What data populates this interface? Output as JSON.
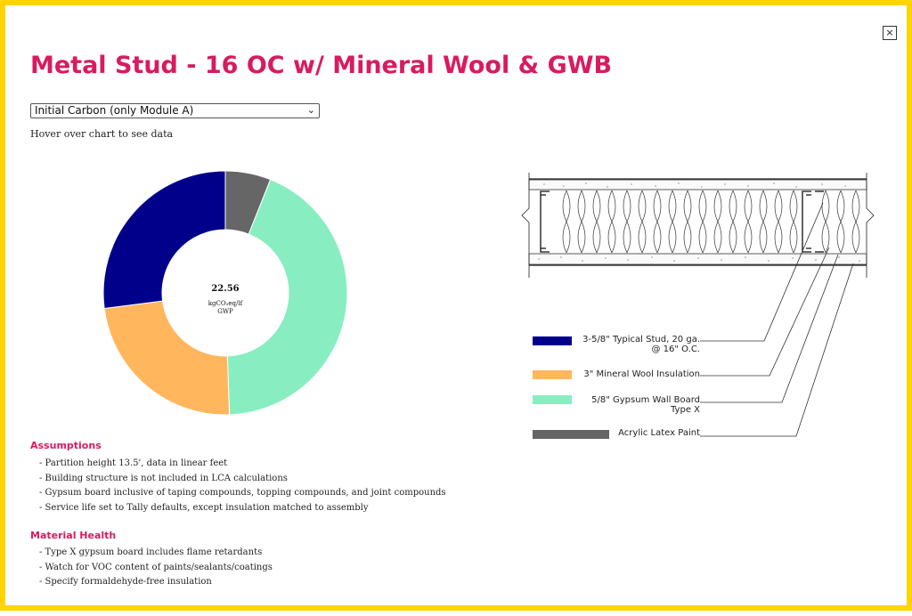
{
  "dialog": {
    "close_label": "×",
    "title": "Metal Stud - 16 OC w/ Mineral Wool & GWB"
  },
  "view_select": {
    "selected": "Initial Carbon (only Module A)"
  },
  "hint": "Hover over chart to see data",
  "chart_data": {
    "type": "pie",
    "values": [
      6.1,
      5.3,
      9.8,
      1.36
    ],
    "colors": [
      "#00008b",
      "#ffb65c",
      "#88eec1",
      "#666666"
    ],
    "order_note_values_clockwise_from": "gray",
    "center_value": "22.56",
    "center_unit_line1": "kgCO₂eq/lf",
    "center_unit_line2": "GWP"
  },
  "legend": [
    {
      "line1": "3-5/8\" Typical Stud, 20 ga.",
      "line2": "@ 16\" O.C.",
      "color": "#00008b"
    },
    {
      "line1": "3\" Mineral Wool Insulation",
      "line2": "",
      "color": "#ffb65c"
    },
    {
      "line1": "5/8\" Gypsum Wall Board",
      "line2": "Type X",
      "color": "#88eec1"
    },
    {
      "line1": "Acrylic Latex Paint",
      "line2": "",
      "color": "#666666"
    }
  ],
  "assumptions": {
    "heading": "Assumptions",
    "items": [
      "- Partition height 13.5', data in linear feet",
      "- Building structure is not included in LCA calculations",
      "- Gypsum board inclusive of taping compounds, topping compounds, and joint compounds",
      "- Service life set to Tally defaults, except insulation matched to assembly"
    ]
  },
  "material_health": {
    "heading": "Material Health",
    "items": [
      "- Type X gypsum board includes flame retardants",
      "- Watch for VOC content of paints/sealants/coatings",
      "- Specify formaldehyde-free insulation"
    ]
  }
}
